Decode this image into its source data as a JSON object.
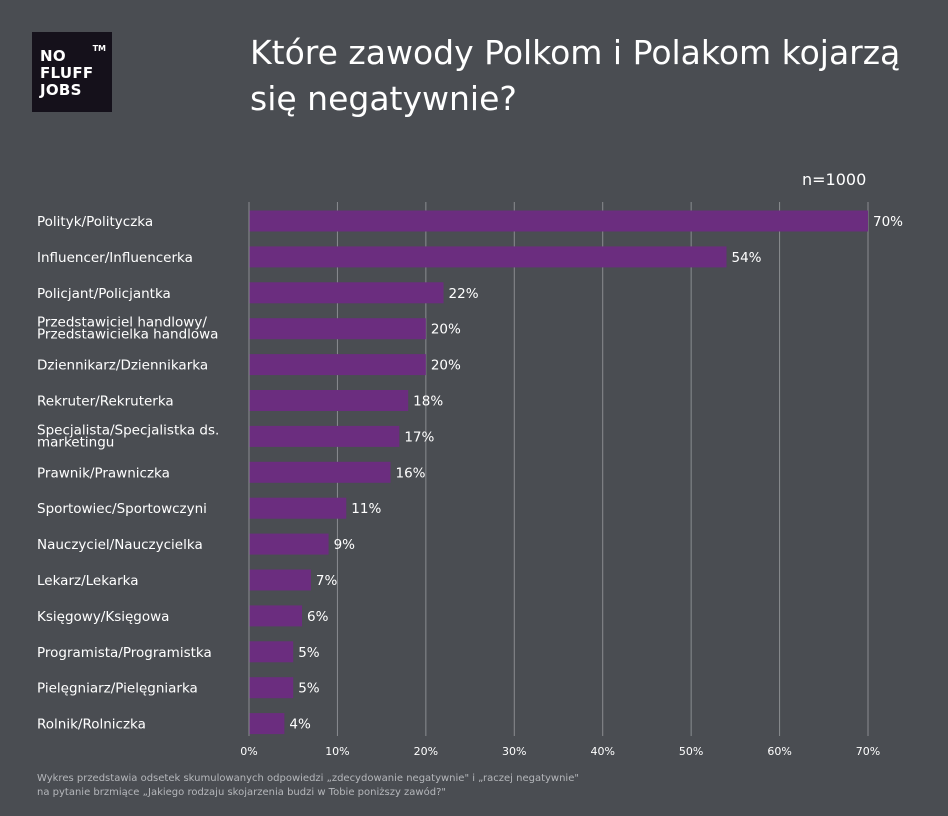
{
  "logo": {
    "lines": [
      "NO",
      "FLUFF",
      "JOBS"
    ],
    "tm": "TM"
  },
  "title": "Które zawody Polkom i Polakom kojarzą się negatywnie?",
  "sample_label": "n=1000",
  "colors": {
    "background": "#4a4d52",
    "bar": "#6b2d7f",
    "grid": "#8a8c90",
    "text": "#ffffff",
    "logo_bg": "#15111b"
  },
  "footnote": [
    "Wykres przedstawia odsetek skumulowanych odpowiedzi „zdecydowanie negatywnie\" i „raczej negatywnie\"",
    "na pytanie brzmiące „Jakiego rodzaju skojarzenia budzi w Tobie poniższy zawód?\""
  ],
  "chart_data": {
    "type": "bar",
    "orientation": "horizontal",
    "title": "Które zawody Polkom i Polakom kojarzą się negatywnie?",
    "categories": [
      "Polityk/Polityczka",
      "Influencer/Influencerka",
      "Policjant/Policjantka",
      "Przedstawiciel handlowy/ Przedstawicielka handlowa",
      "Dziennikarz/Dziennikarka",
      "Rekruter/Rekruterka",
      "Specjalista/Specjalistka ds. marketingu",
      "Prawnik/Prawniczka",
      "Sportowiec/Sportowczyni",
      "Nauczyciel/Nauczycielka",
      "Lekarz/Lekarka",
      "Księgowy/Księgowa",
      "Programista/Programistka",
      "Pielęgniarz/Pielęgniarka",
      "Rolnik/Rolniczka"
    ],
    "category_lines": [
      [
        "Polityk/Polityczka"
      ],
      [
        "Influencer/Influencerka"
      ],
      [
        "Policjant/Policjantka"
      ],
      [
        "Przedstawiciel handlowy/",
        "Przedstawicielka handlowa"
      ],
      [
        "Dziennikarz/Dziennikarka"
      ],
      [
        "Rekruter/Rekruterka"
      ],
      [
        "Specjalista/Specjalistka ds.",
        "marketingu"
      ],
      [
        "Prawnik/Prawniczka"
      ],
      [
        "Sportowiec/Sportowczyni"
      ],
      [
        "Nauczyciel/Nauczycielka"
      ],
      [
        "Lekarz/Lekarka"
      ],
      [
        "Księgowy/Księgowa"
      ],
      [
        "Programista/Programistka"
      ],
      [
        "Pielęgniarz/Pielęgniarka"
      ],
      [
        "Rolnik/Rolniczka"
      ]
    ],
    "values": [
      70,
      54,
      22,
      20,
      20,
      18,
      17,
      16,
      11,
      9,
      7,
      6,
      5,
      5,
      4
    ],
    "value_labels": [
      "70%",
      "54%",
      "22%",
      "20%",
      "20%",
      "18%",
      "17%",
      "16%",
      "11%",
      "9%",
      "7%",
      "6%",
      "5%",
      "5%",
      "4%"
    ],
    "xlim": [
      0,
      70
    ],
    "xticks": [
      0,
      10,
      20,
      30,
      40,
      50,
      60,
      70
    ],
    "xtick_labels": [
      "0%",
      "10%",
      "20%",
      "30%",
      "40%",
      "50%",
      "60%",
      "70%"
    ],
    "grid": true,
    "legend": "none"
  }
}
